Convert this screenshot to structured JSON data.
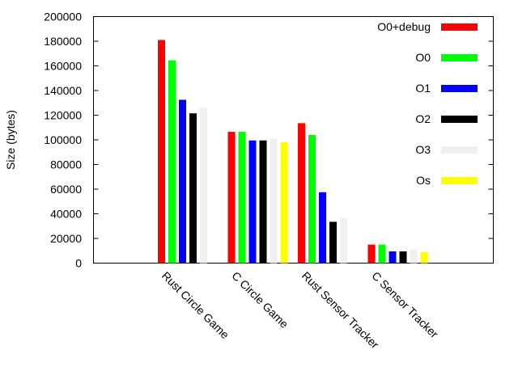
{
  "chart_data": {
    "type": "bar",
    "ylabel": "Size (bytes)",
    "xlabel": "",
    "ylim": [
      0,
      200000
    ],
    "yticks": [
      0,
      20000,
      40000,
      60000,
      80000,
      100000,
      120000,
      140000,
      160000,
      180000,
      200000
    ],
    "grid": false,
    "legend_position": "top-right",
    "categories": [
      "Rust Circle Game",
      "C Circle Game",
      "Rust Sensor Tracker",
      "C Sensor Tracker"
    ],
    "series": [
      {
        "name": "O0+debug",
        "color": "#ff0000",
        "values": [
          181000,
          106500,
          113500,
          15000
        ]
      },
      {
        "name": "O0",
        "color": "#00ff00",
        "values": [
          164500,
          106500,
          104000,
          15000
        ]
      },
      {
        "name": "O1",
        "color": "#0000ff",
        "values": [
          132500,
          99500,
          57500,
          9500
        ]
      },
      {
        "name": "O2",
        "color": "#000000",
        "values": [
          121500,
          99500,
          33500,
          9500
        ]
      },
      {
        "name": "O3",
        "color": "#f0f0f0",
        "values": [
          126000,
          101000,
          36500,
          11000
        ]
      },
      {
        "name": "Os",
        "color": "#ffff00",
        "values": [
          null,
          98000,
          null,
          9000
        ]
      }
    ]
  }
}
